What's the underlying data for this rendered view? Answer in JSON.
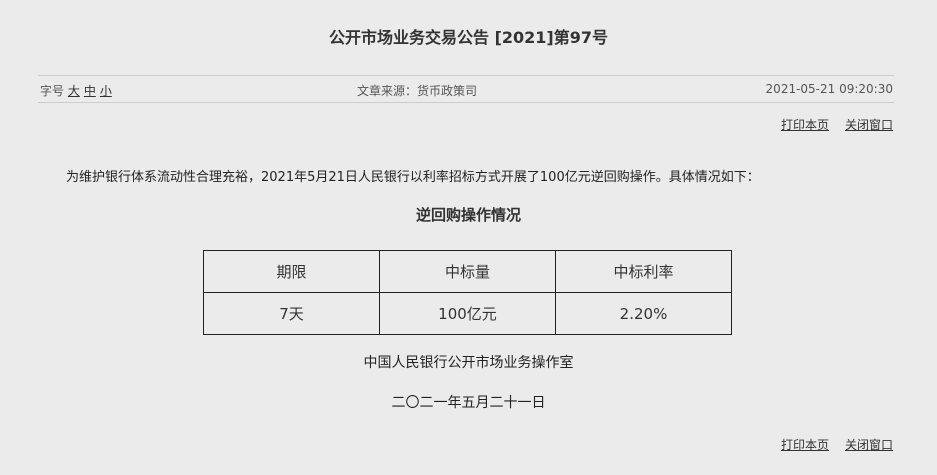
{
  "title": "公开市场业务交易公告 [2021]第97号",
  "meta": {
    "font_size_label": "字号",
    "sizes": [
      "大",
      "中",
      "小"
    ],
    "source": "文章来源：货币政策司",
    "datetime": "2021-05-21 09:20:30"
  },
  "links": {
    "print": "打印本页",
    "close": "关闭窗口"
  },
  "body": {
    "paragraph": "为维护银行体系流动性合理充裕，2021年5月21日人民银行以利率招标方式开展了100亿元逆回购操作。具体情况如下：",
    "subtitle": "逆回购操作情况",
    "table": {
      "headers": [
        "期限",
        "中标量",
        "中标利率"
      ],
      "rows": [
        [
          "7天",
          "100亿元",
          "2.20%"
        ]
      ]
    },
    "issuer": "中国人民银行公开市场业务操作室",
    "date": "二〇二一年五月二十一日"
  }
}
